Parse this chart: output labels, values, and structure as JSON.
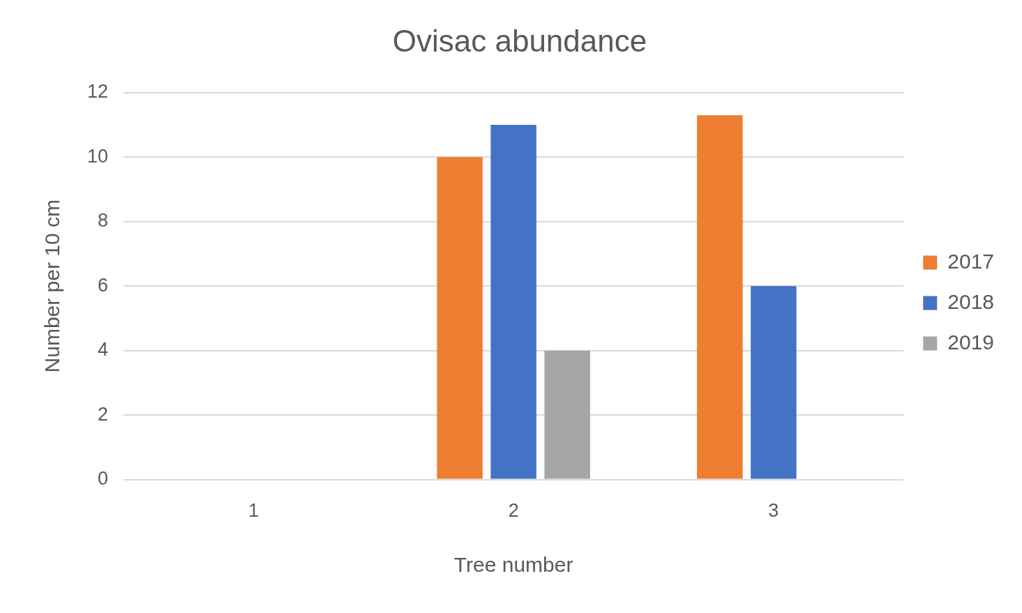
{
  "chart_data": {
    "type": "bar",
    "title": "Ovisac abundance",
    "xlabel": "Tree number",
    "ylabel": "Number per 10 cm",
    "categories": [
      "1",
      "2",
      "3"
    ],
    "series": [
      {
        "name": "2017",
        "color": "#ed7d31",
        "values": [
          0,
          10,
          11.3
        ]
      },
      {
        "name": "2018",
        "color": "#4472c4",
        "values": [
          0,
          11,
          6
        ]
      },
      {
        "name": "2019",
        "color": "#a5a5a5",
        "values": [
          0,
          4,
          0
        ]
      }
    ],
    "ylim": [
      0,
      12
    ],
    "yticks": [
      0,
      2,
      4,
      6,
      8,
      10,
      12
    ],
    "grid": "y",
    "legend": "right"
  }
}
